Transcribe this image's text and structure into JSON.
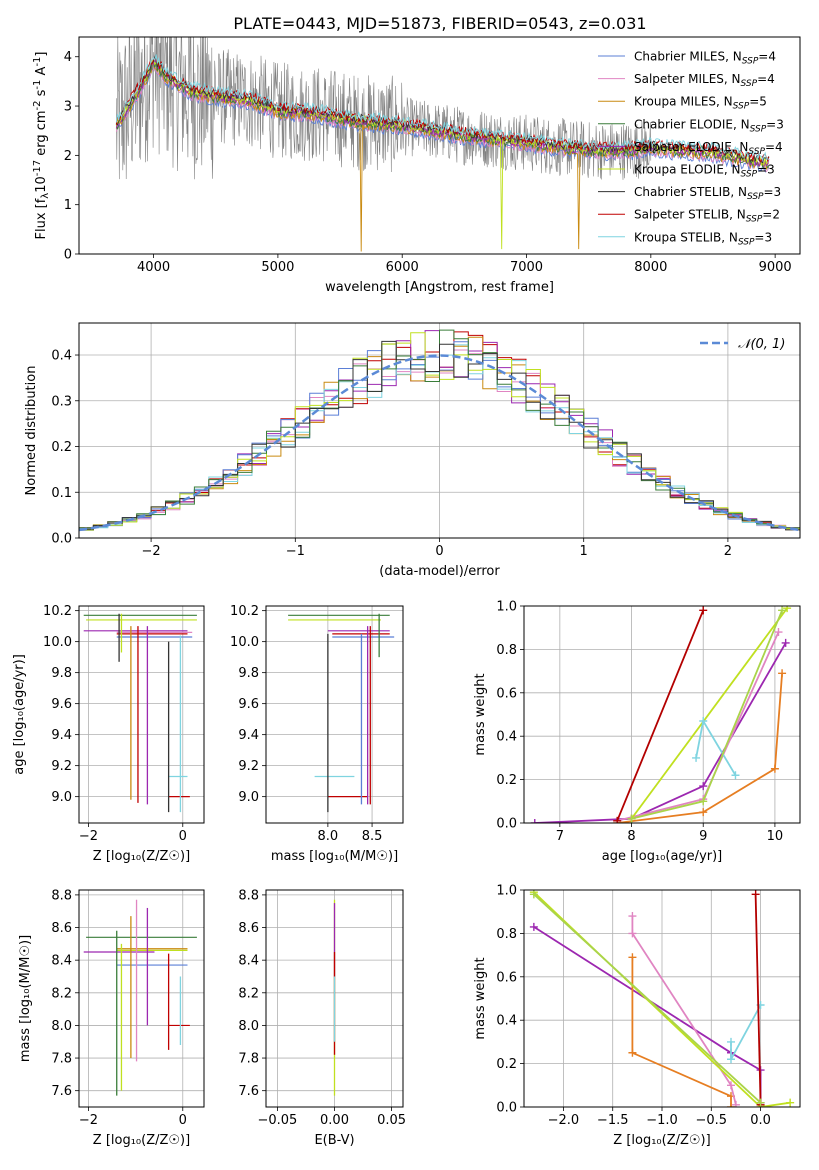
{
  "figure_title": "PLATE=0443, MJD=51873, FIBERID=0543, z=0.031",
  "colors": {
    "data": "#808080",
    "series": [
      "#5b7fd6",
      "#e085c2",
      "#c98a10",
      "#3a7d3a",
      "#9c27b0",
      "#c0e020",
      "#333333",
      "#c00000",
      "#7fd4e0"
    ],
    "wt_colors": [
      "#9c27b0",
      "#e67e22",
      "#e085c2",
      "#c0e020",
      "#7fd4e0",
      "#b30000",
      "#aad44a"
    ],
    "normal": "#5b8ad6"
  },
  "legend": [
    {
      "label": "Chabrier MILES, N",
      "sub": "SSP",
      "tail": "=4"
    },
    {
      "label": "Salpeter MILES, N",
      "sub": "SSP",
      "tail": "=4"
    },
    {
      "label": "Kroupa MILES, N",
      "sub": "SSP",
      "tail": "=5"
    },
    {
      "label": "Chabrier ELODIE, N",
      "sub": "SSP",
      "tail": "=3"
    },
    {
      "label": "Salpeter ELODIE, N",
      "sub": "SSP",
      "tail": "=4"
    },
    {
      "label": "Kroupa ELODIE, N",
      "sub": "SSP",
      "tail": "=3"
    },
    {
      "label": "Chabrier STELIB, N",
      "sub": "SSP",
      "tail": "=3"
    },
    {
      "label": "Salpeter STELIB, N",
      "sub": "SSP",
      "tail": "=2"
    },
    {
      "label": "Kroupa STELIB, N",
      "sub": "SSP",
      "tail": "=3"
    }
  ],
  "chart_data": [
    {
      "id": "spectrum",
      "type": "line",
      "title": "PLATE=0443, MJD=51873, FIBERID=0543, z=0.031",
      "xlabel": "wavelength [Angstrom, rest frame]",
      "ylabel_pre": "Flux [f",
      "ylabel_sub": "λ",
      "ylabel_post": "10",
      "ylabel_sup1": "-17",
      "ylabel_rest": " erg cm",
      "ylabel_sup2": "-2",
      "ylabel_rest2": " s",
      "ylabel_sup3": "-1",
      "ylabel_rest3": " A",
      "ylabel_sup4": "-1",
      "ylabel_end": "]",
      "xlim": [
        3400,
        9200
      ],
      "ylim": [
        0,
        4.4
      ],
      "xticks": [
        4000,
        5000,
        6000,
        7000,
        8000,
        9000
      ],
      "yticks": [
        0,
        1,
        2,
        3,
        4
      ],
      "model_continuum": [
        [
          3700,
          2.6
        ],
        [
          3800,
          3.0
        ],
        [
          3900,
          3.4
        ],
        [
          4000,
          3.9
        ],
        [
          4100,
          3.6
        ],
        [
          4300,
          3.3
        ],
        [
          4500,
          3.2
        ],
        [
          4800,
          3.1
        ],
        [
          5000,
          2.9
        ],
        [
          5300,
          2.85
        ],
        [
          5600,
          2.7
        ],
        [
          6000,
          2.6
        ],
        [
          6500,
          2.4
        ],
        [
          7000,
          2.25
        ],
        [
          7500,
          2.1
        ],
        [
          7800,
          2.1
        ],
        [
          8000,
          2.15
        ],
        [
          8500,
          2.05
        ],
        [
          8900,
          1.85
        ]
      ],
      "data_range": [
        3700,
        8000
      ]
    },
    {
      "id": "residuals",
      "type": "bar",
      "xlabel": "(data-model)/error",
      "ylabel": "Normed distribution",
      "xlim": [
        -2.5,
        2.5
      ],
      "ylim": [
        0,
        0.47
      ],
      "xticks": [
        -2,
        -1,
        0,
        1,
        2
      ],
      "xtick_labels": [
        "−2",
        "−1",
        "0",
        "1",
        "2"
      ],
      "yticks": [
        0.0,
        0.1,
        0.2,
        0.3,
        0.4
      ],
      "ytick_labels": [
        "0.0",
        "0.1",
        "0.2",
        "0.3",
        "0.4"
      ],
      "bin_width": 0.1,
      "normal_label": "𝒩(0, 1)"
    },
    {
      "id": "age_vs_Z",
      "type": "scatter",
      "xlabel": "Z [log₁₀(Z/Z☉)]",
      "ylabel": "age  [log₁₀(age/yr)]",
      "xlim": [
        -2.2,
        0.45
      ],
      "ylim": [
        8.83,
        10.23
      ],
      "xticks": [
        -2,
        0
      ],
      "xtick_labels": [
        "−2",
        "0"
      ],
      "yticks": [
        9.0,
        9.2,
        9.4,
        9.6,
        9.8,
        10.0,
        10.2
      ],
      "ytick_labels": [
        "9.0",
        "9.2",
        "9.4",
        "9.6",
        "9.8",
        "10.0",
        "10.2"
      ],
      "hlines": [
        {
          "y": 10.17,
          "x1": -2.1,
          "x2": 0.3,
          "c": 3
        },
        {
          "y": 10.14,
          "x1": -2.05,
          "x2": 0.3,
          "c": 5
        },
        {
          "y": 10.07,
          "x1": -2.1,
          "x2": 0.1,
          "c": 4
        },
        {
          "y": 10.06,
          "x1": -1.4,
          "x2": 0.2,
          "c": 1
        },
        {
          "y": 10.05,
          "x1": -1.4,
          "x2": 0.1,
          "c": 7
        },
        {
          "y": 10.03,
          "x1": -1.4,
          "x2": 0.2,
          "c": 0
        },
        {
          "y": 9.13,
          "x1": -0.3,
          "x2": 0.1,
          "c": 8
        },
        {
          "y": 9.0,
          "x1": -0.3,
          "x2": 0.15,
          "c": 7
        }
      ],
      "vlines": [
        {
          "x": -1.35,
          "y1": 9.87,
          "y2": 10.18,
          "c": 6
        },
        {
          "x": -1.3,
          "y1": 9.93,
          "y2": 10.18,
          "c": 5
        },
        {
          "x": -1.1,
          "y1": 8.98,
          "y2": 10.1,
          "c": 2
        },
        {
          "x": -0.95,
          "y1": 8.96,
          "y2": 10.1,
          "c": 7
        },
        {
          "x": -0.75,
          "y1": 8.95,
          "y2": 10.1,
          "c": 4
        },
        {
          "x": -0.3,
          "y1": 8.9,
          "y2": 10.0,
          "c": 6
        },
        {
          "x": -0.05,
          "y1": 8.9,
          "y2": 10.04,
          "c": 8
        }
      ]
    },
    {
      "id": "age_vs_mass",
      "type": "scatter",
      "xlabel": "mass [log₁₀(M/M☉)]",
      "xlim": [
        7.3,
        8.85
      ],
      "ylim": [
        8.83,
        10.23
      ],
      "xticks": [
        8.0,
        8.5
      ],
      "xtick_labels": [
        "8.0",
        "8.5"
      ],
      "yticks": [
        9.0,
        9.2,
        9.4,
        9.6,
        9.8,
        10.0,
        10.2
      ],
      "ytick_labels": [
        "9.0",
        "9.2",
        "9.4",
        "9.6",
        "9.8",
        "10.0",
        "10.2"
      ],
      "hlines": [
        {
          "y": 10.17,
          "x1": 7.55,
          "x2": 8.7,
          "c": 3
        },
        {
          "y": 10.14,
          "x1": 7.55,
          "x2": 8.6,
          "c": 5
        },
        {
          "y": 10.07,
          "x1": 8.0,
          "x2": 8.7,
          "c": 4
        },
        {
          "y": 10.05,
          "x1": 8.05,
          "x2": 8.7,
          "c": 7
        },
        {
          "y": 10.03,
          "x1": 8.05,
          "x2": 8.75,
          "c": 0
        },
        {
          "y": 9.13,
          "x1": 7.85,
          "x2": 8.3,
          "c": 8
        },
        {
          "y": 9.0,
          "x1": 8.0,
          "x2": 8.45,
          "c": 7
        }
      ],
      "vlines": [
        {
          "x": 8.0,
          "y1": 8.9,
          "y2": 10.05,
          "c": 6
        },
        {
          "x": 8.38,
          "y1": 8.95,
          "y2": 10.05,
          "c": 0
        },
        {
          "x": 8.45,
          "y1": 8.95,
          "y2": 10.1,
          "c": 4
        },
        {
          "x": 8.48,
          "y1": 8.95,
          "y2": 10.1,
          "c": 7
        },
        {
          "x": 8.58,
          "y1": 9.9,
          "y2": 10.18,
          "c": 3
        }
      ]
    },
    {
      "id": "massweight_vs_age",
      "type": "line",
      "xlabel": "age  [log₁₀(age/yr)]",
      "ylabel": "mass weight",
      "xlim": [
        6.5,
        10.35
      ],
      "ylim": [
        0,
        1
      ],
      "xticks": [
        7,
        8,
        9,
        10
      ],
      "xtick_labels": [
        "7",
        "8",
        "9",
        "10"
      ],
      "yticks": [
        0.0,
        0.2,
        0.4,
        0.6,
        0.8,
        1.0
      ],
      "ytick_labels": [
        "0.0",
        "0.2",
        "0.4",
        "0.6",
        "0.8",
        "1.0"
      ],
      "series": [
        {
          "c": 0,
          "points": [
            [
              6.65,
              0.0
            ],
            [
              8.0,
              0.02
            ],
            [
              9.0,
              0.17
            ],
            [
              10.15,
              0.83
            ]
          ]
        },
        {
          "c": 1,
          "points": [
            [
              7.8,
              0.0
            ],
            [
              9.0,
              0.05
            ],
            [
              10.0,
              0.25
            ],
            [
              10.1,
              0.69
            ]
          ]
        },
        {
          "c": 2,
          "points": [
            [
              7.8,
              0.01
            ],
            [
              9.0,
              0.11
            ],
            [
              10.05,
              0.88
            ]
          ]
        },
        {
          "c": 3,
          "points": [
            [
              8.0,
              0.02
            ],
            [
              10.17,
              0.99
            ]
          ]
        },
        {
          "c": 4,
          "points": [
            [
              8.9,
              0.3
            ],
            [
              9.0,
              0.47
            ],
            [
              9.45,
              0.22
            ]
          ]
        },
        {
          "c": 5,
          "points": [
            [
              7.8,
              0.01
            ],
            [
              9.0,
              0.98
            ]
          ]
        },
        {
          "c": 6,
          "points": [
            [
              8.0,
              0.02
            ],
            [
              9.0,
              0.1
            ],
            [
              10.1,
              0.98
            ]
          ]
        }
      ]
    },
    {
      "id": "mass_vs_Z",
      "type": "scatter",
      "xlabel": "Z [log₁₀(Z/Z☉)]",
      "ylabel": "mass [log₁₀(M/M☉)]",
      "xlim": [
        -2.2,
        0.45
      ],
      "ylim": [
        7.5,
        8.83
      ],
      "xticks": [
        -2,
        0
      ],
      "xtick_labels": [
        "−2",
        "0"
      ],
      "yticks": [
        7.6,
        7.8,
        8.0,
        8.2,
        8.4,
        8.6,
        8.8
      ],
      "ytick_labels": [
        "7.6",
        "7.8",
        "8.0",
        "8.2",
        "8.4",
        "8.6",
        "8.8"
      ],
      "hlines": [
        {
          "y": 8.54,
          "x1": -2.05,
          "x2": 0.3,
          "c": 3
        },
        {
          "y": 8.47,
          "x1": -1.4,
          "x2": 0.1,
          "c": 2
        },
        {
          "y": 8.46,
          "x1": -1.4,
          "x2": 0.1,
          "c": 5
        },
        {
          "y": 8.45,
          "x1": -2.1,
          "x2": -0.6,
          "c": 4
        },
        {
          "y": 8.37,
          "x1": -1.4,
          "x2": 0.1,
          "c": 0
        },
        {
          "y": 8.0,
          "x1": -0.3,
          "x2": 0.15,
          "c": 7
        }
      ],
      "vlines": [
        {
          "x": -1.4,
          "y1": 7.57,
          "y2": 8.58,
          "c": 3
        },
        {
          "x": -1.3,
          "y1": 7.6,
          "y2": 8.5,
          "c": 5
        },
        {
          "x": -1.1,
          "y1": 7.8,
          "y2": 8.67,
          "c": 2
        },
        {
          "x": -0.98,
          "y1": 7.78,
          "y2": 8.77,
          "c": 1
        },
        {
          "x": -0.75,
          "y1": 8.0,
          "y2": 8.72,
          "c": 4
        },
        {
          "x": -0.3,
          "y1": 7.85,
          "y2": 8.44,
          "c": 7
        },
        {
          "x": -0.05,
          "y1": 7.88,
          "y2": 8.3,
          "c": 8
        }
      ]
    },
    {
      "id": "mass_vs_ebv",
      "type": "scatter",
      "xlabel": "E(B-V)",
      "xlim": [
        -0.06,
        0.06
      ],
      "ylim": [
        7.5,
        8.83
      ],
      "xticks": [
        -0.05,
        0.0,
        0.05
      ],
      "xtick_labels": [
        "−0.05",
        "0.00",
        "0.05"
      ],
      "yticks": [
        7.6,
        7.8,
        8.0,
        8.2,
        8.4,
        8.6,
        8.8
      ],
      "ytick_labels": [
        "7.6",
        "7.8",
        "8.0",
        "8.2",
        "8.4",
        "8.6",
        "8.8"
      ],
      "vlines": [
        {
          "x": 0.0,
          "y1": 7.57,
          "y2": 8.77,
          "c": 5
        },
        {
          "x": 0.0,
          "y1": 8.3,
          "y2": 8.75,
          "c": 4
        },
        {
          "x": 0.0,
          "y1": 7.82,
          "y2": 8.45,
          "c": 7
        },
        {
          "x": 0.0,
          "y1": 7.9,
          "y2": 8.3,
          "c": 8
        }
      ]
    },
    {
      "id": "massweight_vs_Z",
      "type": "line",
      "xlabel": "Z [log₁₀(Z/Z☉)]",
      "ylabel": "mass weight",
      "xlim": [
        -2.4,
        0.4
      ],
      "ylim": [
        0,
        1
      ],
      "xticks": [
        -2.0,
        -1.5,
        -1.0,
        -0.5,
        0.0
      ],
      "xtick_labels": [
        "−2.0",
        "−1.5",
        "−1.0",
        "−0.5",
        "0.0"
      ],
      "yticks": [
        0.0,
        0.2,
        0.4,
        0.6,
        0.8,
        1.0
      ],
      "ytick_labels": [
        "0.0",
        "0.2",
        "0.4",
        "0.6",
        "0.8",
        "1.0"
      ],
      "series": [
        {
          "c": 0,
          "points": [
            [
              -2.3,
              0.83
            ],
            [
              -0.3,
              0.25
            ],
            [
              0.0,
              0.17
            ],
            [
              0.0,
              0.02
            ]
          ]
        },
        {
          "c": 1,
          "points": [
            [
              -1.3,
              0.69
            ],
            [
              -1.3,
              0.25
            ],
            [
              -0.3,
              0.05
            ],
            [
              -0.3,
              0.0
            ]
          ]
        },
        {
          "c": 2,
          "points": [
            [
              -1.3,
              0.88
            ],
            [
              -1.3,
              0.8
            ],
            [
              -0.3,
              0.1
            ],
            [
              -0.25,
              0.01
            ]
          ]
        },
        {
          "c": 3,
          "points": [
            [
              -2.3,
              0.99
            ],
            [
              0.0,
              0.0
            ],
            [
              0.3,
              0.02
            ]
          ]
        },
        {
          "c": 4,
          "points": [
            [
              -0.3,
              0.3
            ],
            [
              -0.3,
              0.22
            ],
            [
              0.0,
              0.47
            ]
          ]
        },
        {
          "c": 5,
          "points": [
            [
              -0.05,
              0.98
            ],
            [
              0.0,
              0.01
            ]
          ]
        },
        {
          "c": 6,
          "points": [
            [
              -2.3,
              0.98
            ],
            [
              0.0,
              0.02
            ]
          ]
        }
      ]
    }
  ]
}
